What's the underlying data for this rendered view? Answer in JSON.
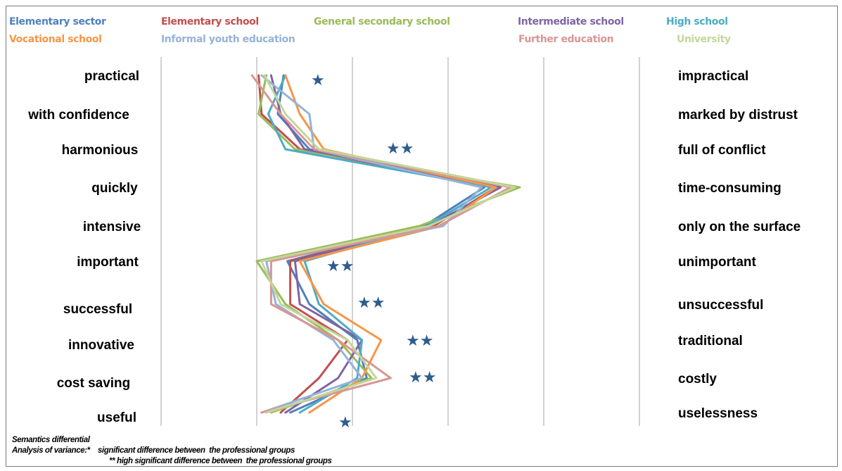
{
  "chart_data": {
    "type": "line",
    "orientation": "vertical-profile",
    "scale_points": 6,
    "xlim": [
      1,
      6
    ],
    "grid": true,
    "left_labels": [
      "practical",
      "with confidence",
      "harmonious",
      "quickly",
      "intensive",
      "important",
      "successful",
      "innovative",
      "cost saving",
      "useful"
    ],
    "right_labels": [
      "impractical",
      "marked by distrust",
      "full of conflict",
      "time-consuming",
      "only on the surface",
      "unimportant",
      "unsuccessful",
      "traditional",
      "costly",
      "uselessness"
    ],
    "significance": [
      "★",
      "",
      "★★",
      "",
      "",
      "★★",
      "★★",
      "★★",
      "★★",
      "★"
    ],
    "series": [
      {
        "name": "Elementary sector",
        "color": "#4f81bd",
        "values": [
          2.28,
          2.22,
          2.55,
          4.38,
          3.75,
          2.32,
          2.55,
          3.05,
          3.15,
          2.35
        ]
      },
      {
        "name": "Elementary school",
        "color": "#c0504d",
        "values": [
          2.02,
          2.05,
          2.45,
          4.5,
          3.85,
          2.35,
          2.35,
          2.95,
          2.65,
          2.25
        ]
      },
      {
        "name": "General  secondary school",
        "color": "#9bbb59",
        "values": [
          2.1,
          2.02,
          2.4,
          4.75,
          3.7,
          2.0,
          2.3,
          2.85,
          3.2,
          2.15
        ]
      },
      {
        "name": "Intermediate school",
        "color": "#8064a2",
        "values": [
          2.15,
          2.25,
          2.5,
          4.55,
          3.8,
          2.4,
          2.45,
          3.1,
          2.85,
          2.3
        ]
      },
      {
        "name": "High school",
        "color": "#4bacc6",
        "values": [
          2.3,
          2.12,
          2.3,
          4.45,
          3.78,
          2.5,
          2.65,
          3.1,
          3.05,
          2.45
        ]
      },
      {
        "name": "Vocational school",
        "color": "#f79646",
        "values": [
          2.3,
          2.45,
          2.7,
          4.5,
          3.92,
          2.45,
          2.7,
          3.3,
          3.1,
          2.55
        ]
      },
      {
        "name": "Informal youth education",
        "color": "#95b3d7",
        "values": [
          2.05,
          2.55,
          2.6,
          4.35,
          3.95,
          2.1,
          2.2,
          2.8,
          3.1,
          2.05
        ]
      },
      {
        "name": "Further education",
        "color": "#d99694",
        "values": [
          1.95,
          2.25,
          2.6,
          4.65,
          3.9,
          2.15,
          2.15,
          2.85,
          3.4,
          2.05
        ]
      },
      {
        "name": "University",
        "color": "#c3d69b",
        "values": [
          2.08,
          2.3,
          2.65,
          4.7,
          3.8,
          2.05,
          2.25,
          2.95,
          3.25,
          2.1
        ]
      }
    ],
    "legend_row1": [
      {
        "label": "Elementary sector",
        "color": "#4f81bd"
      },
      {
        "label": "Elementary school",
        "color": "#c0504d"
      },
      {
        "label": "General  secondary school",
        "color": "#9bbb59"
      },
      {
        "label": "Intermediate school",
        "color": "#8064a2"
      },
      {
        "label": "High school",
        "color": "#4bacc6"
      }
    ],
    "legend_row2": [
      {
        "label": "Vocational school",
        "color": "#f79646"
      },
      {
        "label": "Informal youth education",
        "color": "#95b3d7"
      },
      {
        "label": "Further education",
        "color": "#d99694"
      },
      {
        "label": "University",
        "color": "#c3d69b"
      }
    ]
  },
  "notes": {
    "line1": "Semantics differential",
    "line2": "Analysis of variance:*    significant difference between  the professional groups",
    "line3": "** high significant difference between  the professional groups"
  }
}
